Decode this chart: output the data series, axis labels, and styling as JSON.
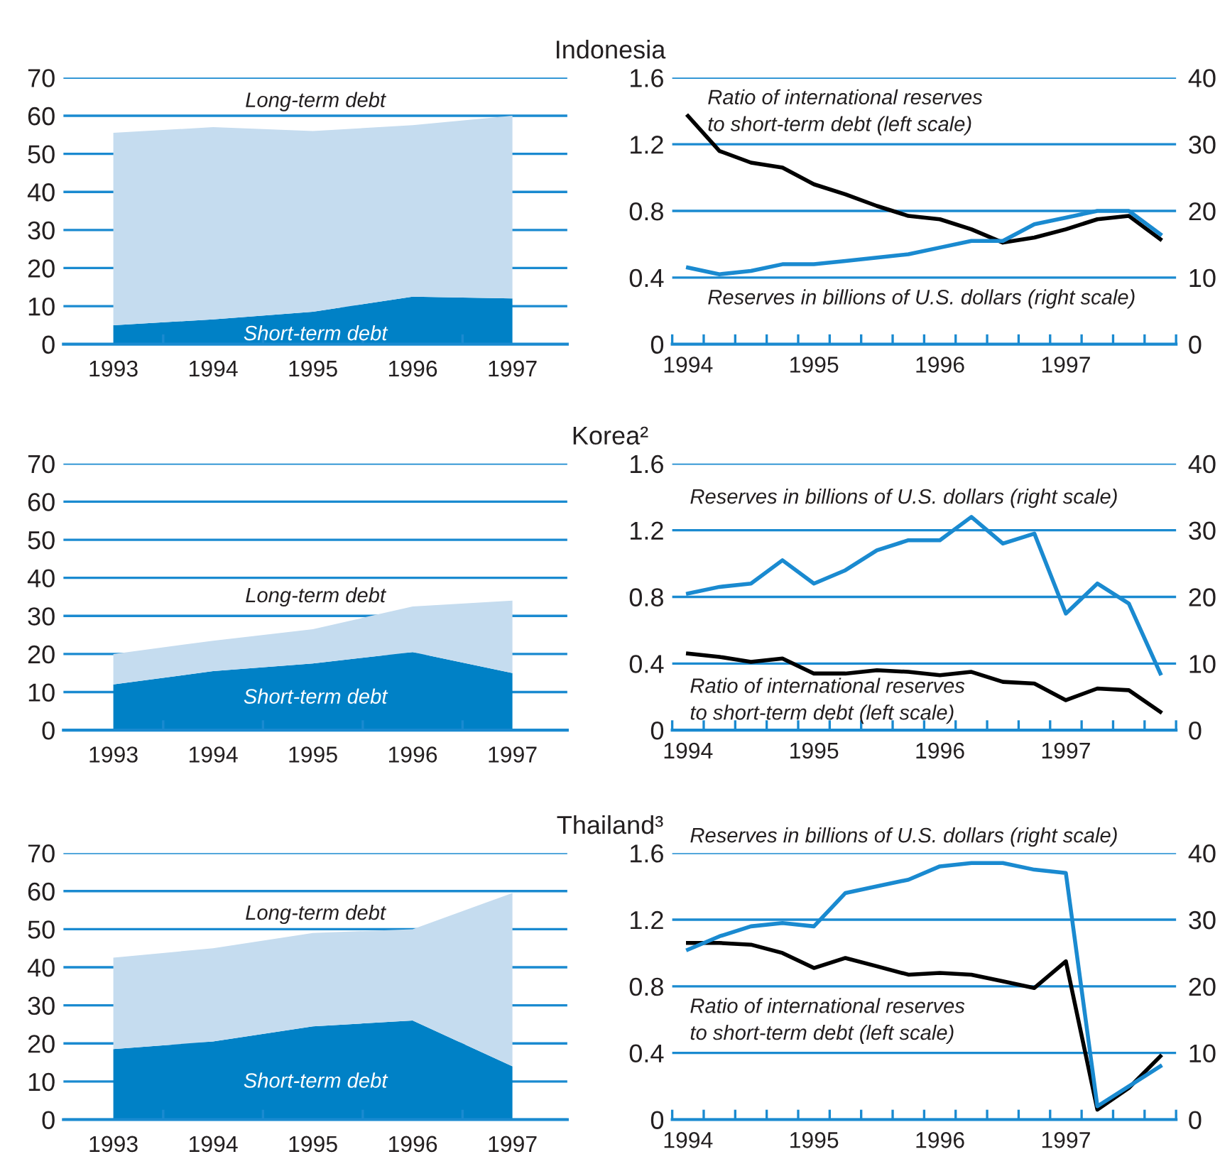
{
  "chart_data": [
    {
      "type": "area",
      "title": "Indonesia",
      "categories": [
        "1993",
        "1994",
        "1995",
        "1996",
        "1997"
      ],
      "stacked": true,
      "ylim": [
        0,
        70
      ],
      "yticks": [
        0,
        10,
        20,
        30,
        40,
        50,
        60,
        70
      ],
      "grid": "y",
      "series": [
        {
          "name": "Short-term debt",
          "color": "#0081c6",
          "values": [
            5,
            6.5,
            8.5,
            12.5,
            12
          ]
        },
        {
          "name": "Long-term debt",
          "color": "#c5dcef",
          "values": [
            50.5,
            50.5,
            47.5,
            45,
            48
          ]
        }
      ]
    },
    {
      "type": "line",
      "x": [
        1994,
        1994.25,
        1994.5,
        1994.75,
        1995,
        1995.25,
        1995.5,
        1995.75,
        1996,
        1996.25,
        1996.5,
        1996.75,
        1997,
        1997.25,
        1997.5,
        1997.75
      ],
      "xlim": [
        1993.875,
        1997.875
      ],
      "xticks": [
        {
          "value": 1993.875,
          "label": null
        },
        1994,
        {
          "value": 1994.125,
          "label": null
        },
        {
          "value": 1994.375,
          "label": null
        },
        {
          "value": 1994.625,
          "label": null
        },
        {
          "value": 1994.875,
          "label": null
        },
        1995,
        {
          "value": 1995.125,
          "label": null
        },
        {
          "value": 1995.375,
          "label": null
        },
        {
          "value": 1995.625,
          "label": null
        },
        {
          "value": 1995.875,
          "label": null
        },
        1996,
        {
          "value": 1996.125,
          "label": null
        },
        {
          "value": 1996.375,
          "label": null
        },
        {
          "value": 1996.625,
          "label": null
        },
        {
          "value": 1996.875,
          "label": null
        },
        1997,
        {
          "value": 1997.125,
          "label": null
        },
        {
          "value": 1997.375,
          "label": null
        },
        {
          "value": 1997.625,
          "label": null
        },
        {
          "value": 1997.875,
          "label": null
        }
      ],
      "ylim": [
        0,
        1.6
      ],
      "yticks": [
        0,
        0.4,
        0.8,
        1.2,
        1.6
      ],
      "y2lim": [
        0,
        40
      ],
      "y2ticks": [
        0,
        10,
        20,
        30,
        40
      ],
      "grid": "y",
      "series": [
        {
          "name": "Ratio of international reserves\nto short-term debt (left scale)",
          "color": "#000000",
          "values": [
            1.37,
            1.16,
            1.09,
            1.06,
            0.96,
            0.9,
            0.83,
            0.77,
            0.75,
            0.69,
            0.61,
            0.64,
            0.69,
            0.75,
            0.77,
            0.63
          ]
        },
        {
          "name": "Reserves in billions of U.S. dollars (right scale)",
          "color": "#1a8ad0",
          "axis": "y2",
          "values": [
            11.5,
            10.5,
            11,
            12,
            12,
            12.5,
            13,
            13.5,
            14.5,
            15.5,
            15.5,
            18,
            19,
            20,
            20,
            16.5
          ]
        }
      ]
    },
    {
      "type": "area",
      "title": "Korea²",
      "categories": [
        "1993",
        "1994",
        "1995",
        "1996",
        "1997"
      ],
      "stacked": true,
      "ylim": [
        0,
        70
      ],
      "yticks": [
        0,
        10,
        20,
        30,
        40,
        50,
        60,
        70
      ],
      "grid": "y",
      "series": [
        {
          "name": "Short-term debt",
          "color": "#0081c6",
          "values": [
            12,
            15.5,
            17.5,
            20.5,
            15
          ]
        },
        {
          "name": "Long-term debt",
          "color": "#c5dcef",
          "values": [
            8,
            8,
            9,
            12,
            19
          ]
        }
      ]
    },
    {
      "type": "line",
      "x": [
        1994,
        1994.25,
        1994.5,
        1994.75,
        1995,
        1995.25,
        1995.5,
        1995.75,
        1996,
        1996.25,
        1996.5,
        1996.75,
        1997,
        1997.25,
        1997.5,
        1997.75
      ],
      "xlim": [
        1993.875,
        1997.875
      ],
      "xticks": [
        {
          "value": 1993.875,
          "label": null
        },
        1994,
        {
          "value": 1994.125,
          "label": null
        },
        {
          "value": 1994.375,
          "label": null
        },
        {
          "value": 1994.625,
          "label": null
        },
        {
          "value": 1994.875,
          "label": null
        },
        1995,
        {
          "value": 1995.125,
          "label": null
        },
        {
          "value": 1995.375,
          "label": null
        },
        {
          "value": 1995.625,
          "label": null
        },
        {
          "value": 1995.875,
          "label": null
        },
        1996,
        {
          "value": 1996.125,
          "label": null
        },
        {
          "value": 1996.375,
          "label": null
        },
        {
          "value": 1996.625,
          "label": null
        },
        {
          "value": 1996.875,
          "label": null
        },
        1997,
        {
          "value": 1997.125,
          "label": null
        },
        {
          "value": 1997.375,
          "label": null
        },
        {
          "value": 1997.625,
          "label": null
        },
        {
          "value": 1997.875,
          "label": null
        }
      ],
      "ylim": [
        0,
        1.6
      ],
      "yticks": [
        0,
        0.4,
        0.8,
        1.2,
        1.6
      ],
      "y2lim": [
        0,
        40
      ],
      "y2ticks": [
        0,
        10,
        20,
        30,
        40
      ],
      "grid": "y",
      "series": [
        {
          "name": "Ratio of international reserves\nto short-term debt (left scale)",
          "color": "#000000",
          "values": [
            0.46,
            0.44,
            0.41,
            0.43,
            0.34,
            0.34,
            0.36,
            0.35,
            0.33,
            0.35,
            0.29,
            0.28,
            0.18,
            0.25,
            0.24,
            0.11
          ]
        },
        {
          "name": "Reserves in billions of U.S. dollars (right scale)",
          "color": "#1a8ad0",
          "axis": "y2",
          "values": [
            20.5,
            21.5,
            22,
            25.5,
            22,
            24,
            27,
            28.5,
            28.5,
            32,
            28,
            29.5,
            17.5,
            22,
            19,
            8.5
          ]
        }
      ]
    },
    {
      "type": "area",
      "title": "Thailand³",
      "categories": [
        "1993",
        "1994",
        "1995",
        "1996",
        "1997"
      ],
      "stacked": true,
      "ylim": [
        0,
        70
      ],
      "yticks": [
        0,
        10,
        20,
        30,
        40,
        50,
        60,
        70
      ],
      "grid": "y",
      "series": [
        {
          "name": "Short-term debt",
          "color": "#0081c6",
          "values": [
            18.5,
            20.5,
            24.5,
            26,
            14
          ]
        },
        {
          "name": "Long-term debt",
          "color": "#c5dcef",
          "values": [
            24,
            24.5,
            24.5,
            24,
            45.5
          ]
        }
      ]
    },
    {
      "type": "line",
      "x": [
        1994,
        1994.25,
        1994.5,
        1994.75,
        1995,
        1995.25,
        1995.5,
        1995.75,
        1996,
        1996.25,
        1996.5,
        1996.75,
        1997,
        1997.25,
        1997.5,
        1997.75
      ],
      "xlim": [
        1993.875,
        1997.875
      ],
      "xticks": [
        {
          "value": 1993.875,
          "label": null
        },
        1994,
        {
          "value": 1994.125,
          "label": null
        },
        {
          "value": 1994.375,
          "label": null
        },
        {
          "value": 1994.625,
          "label": null
        },
        {
          "value": 1994.875,
          "label": null
        },
        1995,
        {
          "value": 1995.125,
          "label": null
        },
        {
          "value": 1995.375,
          "label": null
        },
        {
          "value": 1995.625,
          "label": null
        },
        {
          "value": 1995.875,
          "label": null
        },
        1996,
        {
          "value": 1996.125,
          "label": null
        },
        {
          "value": 1996.375,
          "label": null
        },
        {
          "value": 1996.625,
          "label": null
        },
        {
          "value": 1996.875,
          "label": null
        },
        1997,
        {
          "value": 1997.125,
          "label": null
        },
        {
          "value": 1997.375,
          "label": null
        },
        {
          "value": 1997.625,
          "label": null
        },
        {
          "value": 1997.875,
          "label": null
        }
      ],
      "ylim": [
        0,
        1.6
      ],
      "yticks": [
        0,
        0.4,
        0.8,
        1.2,
        1.6
      ],
      "y2lim": [
        0,
        40
      ],
      "y2ticks": [
        0,
        10,
        20,
        30,
        40
      ],
      "grid": "y",
      "series": [
        {
          "name": "Ratio of international reserves\nto short-term debt (left scale)",
          "color": "#000000",
          "values": [
            1.06,
            1.06,
            1.05,
            1.0,
            0.91,
            0.97,
            0.92,
            0.87,
            0.88,
            0.87,
            0.83,
            0.79,
            0.95,
            0.06,
            0.19,
            0.38
          ]
        },
        {
          "name": "Reserves in billions of U.S. dollars (right scale)",
          "color": "#1a8ad0",
          "axis": "y2",
          "values": [
            25.5,
            27.5,
            29,
            29.5,
            29,
            34,
            35,
            36,
            38,
            38.5,
            38.5,
            37.5,
            37,
            2,
            5,
            8
          ]
        }
      ]
    }
  ]
}
